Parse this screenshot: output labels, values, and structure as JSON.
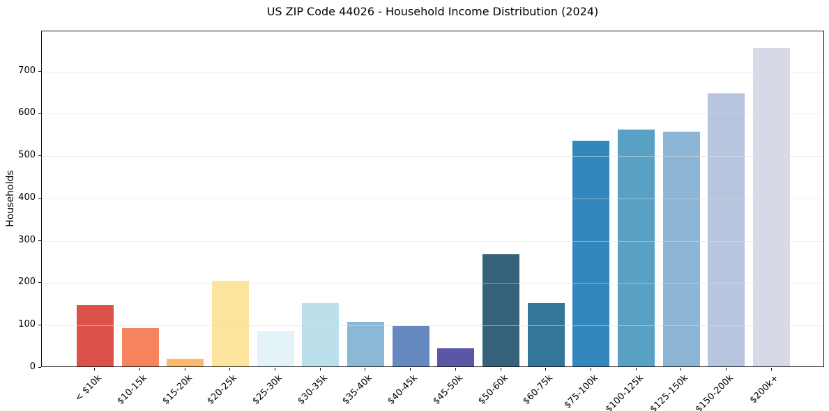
{
  "chart_data": {
    "type": "bar",
    "title": "US ZIP Code 44026 - Household Income Distribution (2024)",
    "xlabel": "",
    "ylabel": "Households",
    "categories": [
      "< $10k",
      "$10-15k",
      "$15-20k",
      "$20-25k",
      "$25-30k",
      "$30-35k",
      "$35-40k",
      "$40-45k",
      "$45-50k",
      "$50-60k",
      "$60-75k",
      "$75-100k",
      "$100-125k",
      "$125-150k",
      "$150-200k",
      "$200k+"
    ],
    "values": [
      145,
      90,
      18,
      203,
      84,
      150,
      105,
      95,
      43,
      265,
      149,
      533,
      560,
      554,
      645,
      753
    ],
    "bar_colors": [
      "#dc5249",
      "#f6855f",
      "#fcb96e",
      "#fde49c",
      "#e4f3f8",
      "#bcdfec",
      "#8ab8d6",
      "#6689bf",
      "#5a58a6",
      "#35617a",
      "#337699",
      "#3287bc",
      "#58a1c4",
      "#8db5d6",
      "#b7c6de",
      "#d7d9e6"
    ],
    "yticks": [
      0,
      100,
      200,
      300,
      400,
      500,
      600,
      700
    ],
    "ylim": [
      0,
      795
    ],
    "grid": "horizontal",
    "legend": "none",
    "colors": {
      "background": "#ffffff",
      "gridline": "#e7e7e7",
      "spine": "#151515",
      "text": "#000000"
    }
  }
}
